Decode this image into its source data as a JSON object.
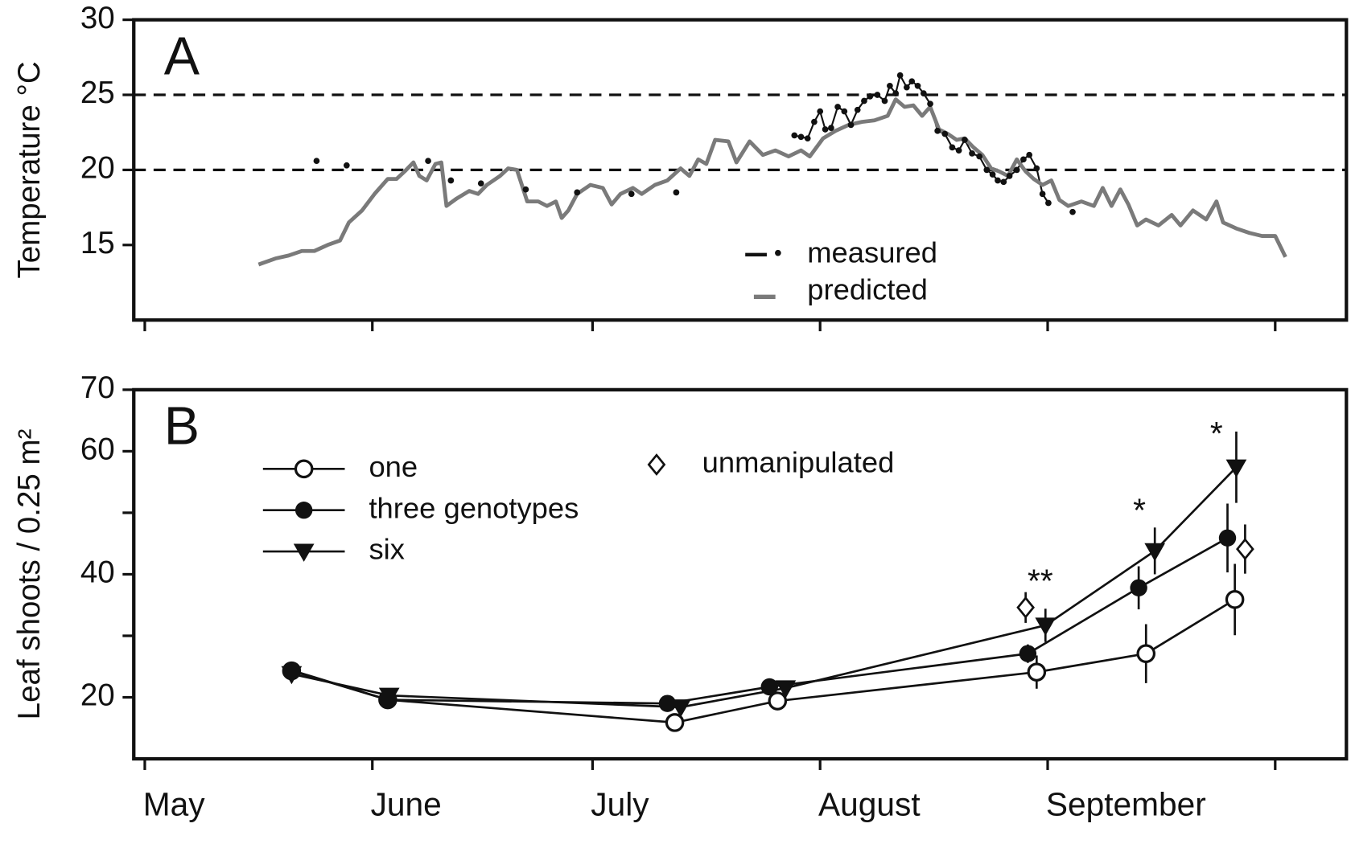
{
  "chart_data": [
    {
      "type": "line",
      "title": "A",
      "ylabel": "Temperature °C",
      "xlim": [
        -1.5,
        163.7
      ],
      "ylim": [
        10,
        30
      ],
      "yticks": [
        15,
        20,
        25,
        30
      ],
      "hlines": [
        20,
        25
      ],
      "legend": "lower center",
      "series": [
        {
          "name": "measured",
          "color": "#111111",
          "marker": "dot",
          "x": [
            23.4,
            null,
            27.5,
            null,
            38.6,
            null,
            41.7,
            null,
            45.8,
            null,
            51.9,
            null,
            58.9,
            null,
            66.3,
            null,
            72.4,
            null,
            88.5,
            89.4,
            90.3,
            91.2,
            92.0,
            92.7,
            93.5,
            94.4,
            95.3,
            96.2,
            97.1,
            98.0,
            98.8,
            99.8,
            100.8,
            101.5,
            102.3,
            102.9,
            103.8,
            104.5,
            105.3,
            106.1,
            107.0,
            108.0,
            109.0,
            110.0,
            110.9,
            111.7,
            112.7,
            113.7,
            114.7,
            115.5,
            116.2,
            117.0,
            117.8,
            118.8,
            119.7,
            120.5,
            121.5,
            122.3,
            123.1,
            null,
            126.4
          ],
          "values": [
            20.6,
            null,
            20.3,
            null,
            20.6,
            null,
            19.3,
            null,
            19.1,
            null,
            18.7,
            null,
            18.5,
            null,
            18.4,
            null,
            18.5,
            null,
            22.3,
            22.2,
            22.1,
            23.2,
            23.9,
            22.7,
            22.8,
            24.2,
            23.9,
            23.0,
            24.0,
            24.6,
            24.9,
            25.0,
            24.6,
            25.6,
            25.1,
            26.3,
            25.5,
            25.9,
            25.6,
            25.1,
            24.4,
            22.6,
            22.4,
            21.5,
            21.3,
            22.0,
            21.1,
            20.9,
            20.0,
            19.7,
            19.3,
            19.2,
            19.6,
            20.0,
            20.7,
            21.0,
            20.1,
            18.4,
            17.8,
            null,
            17.2
          ]
        },
        {
          "name": "predicted",
          "color": "#7a7a7a",
          "x": [
            15.5,
            17.8,
            19.6,
            21.4,
            23.1,
            24.9,
            26.6,
            27.8,
            29.6,
            31.3,
            33.1,
            34.3,
            35.4,
            36.6,
            37.4,
            38.4,
            39.6,
            40.4,
            41.1,
            42.5,
            44.2,
            45.4,
            46.6,
            48.4,
            49.5,
            50.7,
            52.1,
            53.6,
            54.8,
            56.0,
            56.8,
            57.7,
            58.9,
            60.7,
            62.4,
            63.6,
            64.8,
            66.5,
            67.7,
            69.5,
            71.2,
            73.0,
            74.2,
            75.4,
            76.5,
            77.7,
            79.5,
            80.6,
            82.4,
            84.2,
            85.9,
            87.7,
            89.4,
            90.6,
            92.4,
            94.1,
            95.9,
            97.7,
            99.4,
            101.2,
            102.3,
            103.5,
            104.7,
            105.9,
            107.0,
            108.2,
            109.4,
            110.6,
            111.7,
            112.9,
            114.1,
            115.3,
            116.4,
            117.6,
            118.8,
            120.0,
            121.1,
            122.3,
            123.5,
            124.6,
            125.8,
            127.6,
            129.3,
            130.5,
            131.7,
            132.9,
            134.0,
            135.2,
            136.4,
            138.1,
            139.9,
            141.1,
            142.8,
            144.6,
            146.0,
            146.9,
            148.7,
            150.5,
            152.2,
            154.0,
            155.4
          ],
          "values": [
            13.7,
            14.1,
            14.3,
            14.6,
            14.6,
            15.0,
            15.3,
            16.5,
            17.3,
            18.4,
            19.4,
            19.4,
            19.9,
            20.5,
            19.6,
            19.3,
            20.4,
            20.5,
            17.6,
            18.1,
            18.6,
            18.4,
            19.0,
            19.6,
            20.1,
            20.0,
            17.9,
            17.9,
            17.6,
            17.9,
            16.8,
            17.3,
            18.4,
            19.0,
            18.8,
            17.7,
            18.4,
            18.8,
            18.4,
            19.0,
            19.3,
            20.1,
            19.6,
            20.7,
            20.4,
            22.0,
            21.9,
            20.5,
            21.9,
            21.0,
            21.3,
            20.9,
            21.3,
            20.9,
            22.1,
            22.6,
            23.0,
            23.2,
            23.3,
            23.6,
            24.7,
            24.2,
            24.3,
            23.6,
            24.2,
            22.7,
            22.4,
            22.0,
            22.1,
            21.5,
            21.0,
            20.1,
            19.9,
            19.6,
            20.7,
            19.9,
            19.4,
            19.0,
            19.3,
            18.0,
            17.6,
            17.9,
            17.6,
            18.8,
            17.6,
            18.7,
            17.7,
            16.3,
            16.7,
            16.3,
            17.0,
            16.3,
            17.3,
            16.7,
            17.9,
            16.5,
            16.1,
            15.8,
            15.6,
            15.6,
            14.2
          ]
        }
      ]
    },
    {
      "type": "line",
      "title": "B",
      "ylabel": "Leaf shoots / 0.25 m²",
      "xlim": [
        -1.5,
        163.7
      ],
      "ylim": [
        10,
        70
      ],
      "yticks": [
        20,
        40,
        60,
        70
      ],
      "yminor_ticks": [
        30,
        50
      ],
      "xticks": [
        {
          "value": 0,
          "label": "May"
        },
        {
          "value": 31,
          "label": "June"
        },
        {
          "value": 61,
          "label": "July"
        },
        {
          "value": 92,
          "label": "August"
        },
        {
          "value": 123,
          "label": "September"
        }
      ],
      "xminor_ticks": [
        154
      ],
      "legend": "upper left",
      "series": [
        {
          "name": "one",
          "color": "#111111",
          "marker": "open-circle",
          "x": [
            20.0,
            33.1,
            72.2,
            86.2,
            121.5,
            136.4,
            148.5
          ],
          "values": [
            24.3,
            19.6,
            15.9,
            19.4,
            24.1,
            27.1,
            35.9
          ],
          "errors": [
            null,
            null,
            null,
            null,
            2.7,
            4.8,
            5.8
          ]
        },
        {
          "name": "three  genotypes",
          "color": "#111111",
          "marker": "filled-circle",
          "x": [
            20.0,
            33.1,
            71.2,
            85.1,
            120.3,
            135.4,
            147.5
          ],
          "values": [
            24.4,
            19.6,
            19.0,
            21.7,
            27.1,
            37.8,
            45.9
          ],
          "errors": [
            null,
            null,
            null,
            null,
            1.5,
            3.5,
            5.6
          ]
        },
        {
          "name": "six",
          "color": "#111111",
          "marker": "triangle-down",
          "x": [
            20.0,
            33.3,
            73.0,
            87.3,
            122.7,
            137.6,
            148.7
          ],
          "values": [
            23.8,
            20.3,
            18.4,
            21.5,
            31.7,
            43.8,
            57.4
          ],
          "errors": [
            null,
            null,
            null,
            null,
            2.7,
            3.8,
            5.8
          ]
        },
        {
          "name": "unmanipulated",
          "color": "#111111",
          "marker": "open-diamond",
          "line": false,
          "x": [
            120.0,
            149.9
          ],
          "values": [
            34.6,
            44.1
          ],
          "errors": [
            2.5,
            4.0
          ]
        }
      ],
      "annotations": [
        {
          "text": "**",
          "x": 122.0,
          "y": 38.5
        },
        {
          "text": "*",
          "x": 135.5,
          "y": 50.0
        },
        {
          "text": "*",
          "x": 146.0,
          "y": 62.5
        }
      ]
    }
  ]
}
